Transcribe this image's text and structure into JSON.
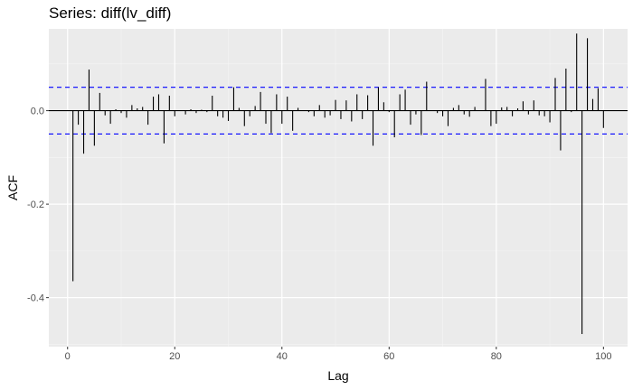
{
  "chart_data": {
    "type": "bar",
    "title": "Series: diff(lv_diff)",
    "xlabel": "Lag",
    "ylabel": "ACF",
    "xlim": [
      -3.5,
      104.5
    ],
    "ylim": [
      -0.505,
      0.175
    ],
    "x_ticks": [
      0,
      20,
      40,
      60,
      80,
      100
    ],
    "x_tick_labels": [
      "0",
      "20",
      "40",
      "60",
      "80",
      "100"
    ],
    "y_ticks": [
      -0.4,
      -0.2,
      0.0
    ],
    "y_tick_labels": [
      "-0.4",
      "-0.2",
      "0.0"
    ],
    "confidence_bounds": [
      -0.05,
      0.05
    ],
    "grid": true,
    "lags": [
      1,
      2,
      3,
      4,
      5,
      6,
      7,
      8,
      9,
      10,
      11,
      12,
      13,
      14,
      15,
      16,
      17,
      18,
      19,
      20,
      21,
      22,
      23,
      24,
      25,
      26,
      27,
      28,
      29,
      30,
      31,
      32,
      33,
      34,
      35,
      36,
      37,
      38,
      39,
      40,
      41,
      42,
      43,
      44,
      45,
      46,
      47,
      48,
      49,
      50,
      51,
      52,
      53,
      54,
      55,
      56,
      57,
      58,
      59,
      60,
      61,
      62,
      63,
      64,
      65,
      66,
      67,
      68,
      69,
      70,
      71,
      72,
      73,
      74,
      75,
      76,
      77,
      78,
      79,
      80,
      81,
      82,
      83,
      84,
      85,
      86,
      87,
      88,
      89,
      90,
      91,
      92,
      93,
      94,
      95,
      96,
      97,
      98,
      99,
      100
    ],
    "values": [
      -0.365,
      -0.03,
      -0.092,
      0.088,
      -0.075,
      0.038,
      -0.01,
      -0.028,
      0.003,
      -0.005,
      -0.015,
      0.012,
      0.005,
      0.008,
      -0.03,
      0.03,
      0.035,
      -0.07,
      0.032,
      -0.012,
      0.0,
      -0.008,
      0.003,
      -0.005,
      0.002,
      -0.003,
      0.032,
      -0.012,
      -0.015,
      -0.022,
      0.05,
      0.006,
      -0.033,
      -0.012,
      0.01,
      0.04,
      -0.028,
      -0.048,
      0.035,
      -0.028,
      0.03,
      -0.043,
      0.006,
      0.0,
      -0.003,
      -0.012,
      0.012,
      -0.015,
      -0.01,
      0.023,
      -0.018,
      0.022,
      -0.023,
      0.035,
      -0.018,
      0.033,
      -0.075,
      0.05,
      0.018,
      -0.003,
      -0.057,
      0.035,
      0.045,
      -0.03,
      -0.008,
      -0.052,
      0.062,
      0.0,
      -0.005,
      -0.012,
      -0.033,
      0.006,
      0.012,
      -0.008,
      -0.013,
      0.008,
      0.0,
      0.068,
      -0.033,
      -0.028,
      0.007,
      0.008,
      -0.012,
      0.005,
      0.02,
      -0.008,
      0.022,
      -0.01,
      -0.012,
      -0.025,
      0.07,
      -0.085,
      0.09,
      -0.003,
      0.165,
      -0.478,
      0.155,
      0.025,
      0.048,
      -0.037
    ]
  }
}
